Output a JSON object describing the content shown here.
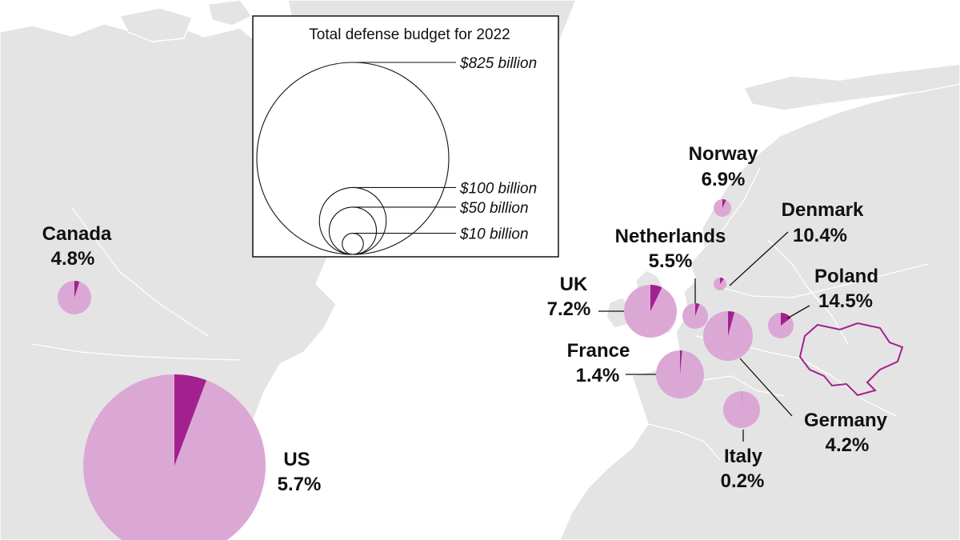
{
  "legend": {
    "title": "Total defense budget for 2022",
    "levels": [
      {
        "value_billion": 825,
        "label": "$825 billion"
      },
      {
        "value_billion": 100,
        "label": "$100 billion"
      },
      {
        "value_billion": 50,
        "label": "$50 billion"
      },
      {
        "value_billion": 10,
        "label": "$10 billion"
      }
    ]
  },
  "colors": {
    "land": "#e4e4e4",
    "pie_base": "#dba8d6",
    "pie_slice": "#a3218f",
    "ukraine_outline": "#a3218f"
  },
  "countries": [
    {
      "name": "Canada",
      "pct_label": "4.8%",
      "pct": 4.8
    },
    {
      "name": "US",
      "pct_label": "5.7%",
      "pct": 5.7
    },
    {
      "name": "UK",
      "pct_label": "7.2%",
      "pct": 7.2
    },
    {
      "name": "France",
      "pct_label": "1.4%",
      "pct": 1.4
    },
    {
      "name": "Netherlands",
      "pct_label": "5.5%",
      "pct": 5.5
    },
    {
      "name": "Norway",
      "pct_label": "6.9%",
      "pct": 6.9
    },
    {
      "name": "Denmark",
      "pct_label": "10.4%",
      "pct": 10.4
    },
    {
      "name": "Poland",
      "pct_label": "14.5%",
      "pct": 14.5
    },
    {
      "name": "Germany",
      "pct_label": "4.2%",
      "pct": 4.2
    },
    {
      "name": "Italy",
      "pct_label": "0.2%",
      "pct": 0.2
    }
  ]
}
